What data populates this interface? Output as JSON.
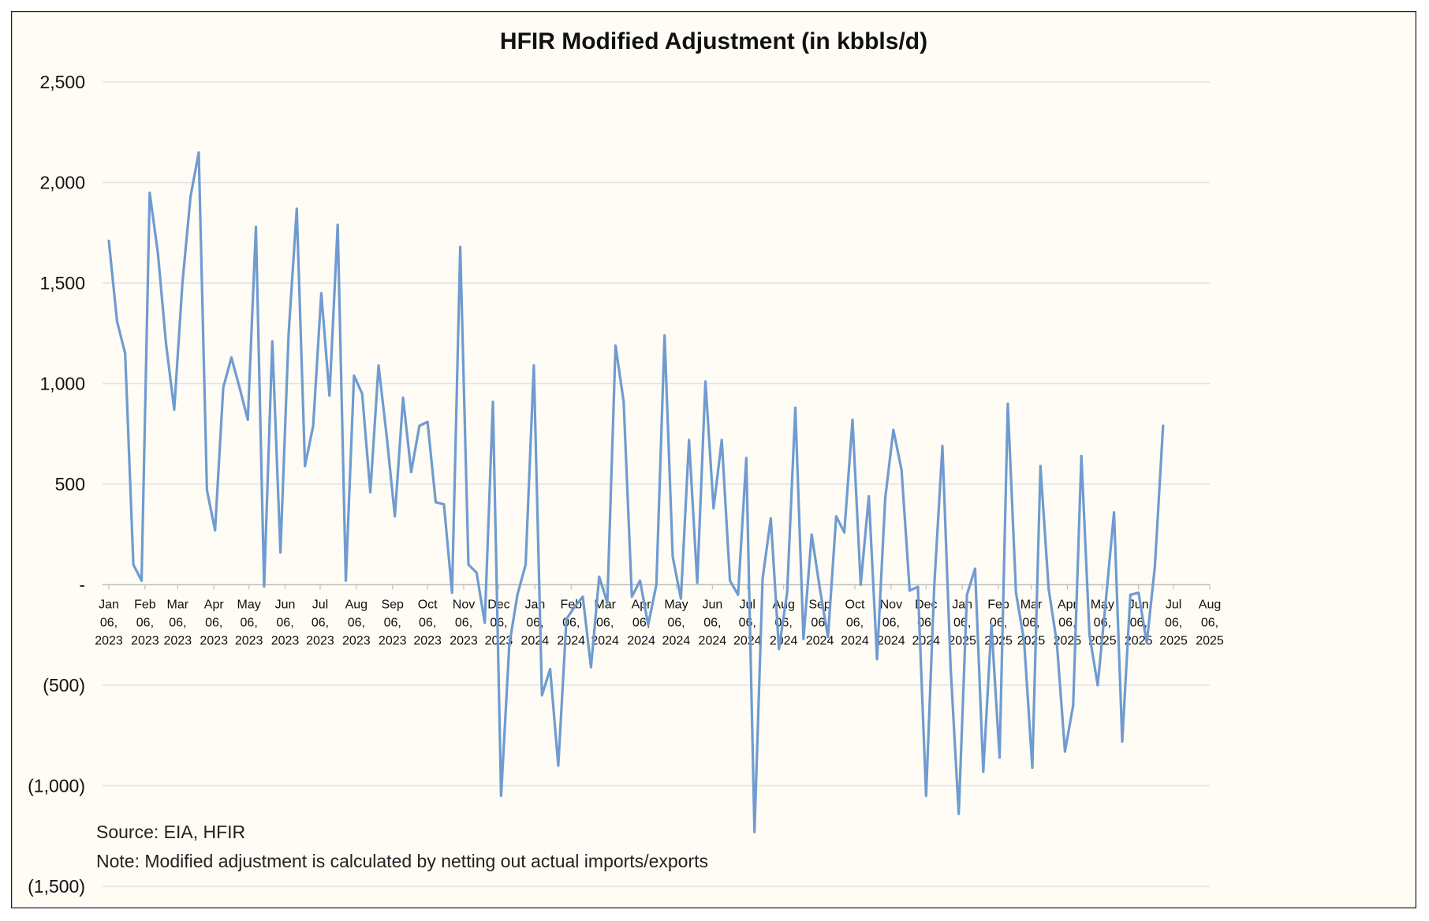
{
  "chart_data": {
    "type": "line",
    "title": "HFIR Modified Adjustment (in kbbls/d)",
    "xlabel": "",
    "ylabel": "",
    "ylim": [
      -1500,
      2500
    ],
    "y_ticks": [
      2500,
      2000,
      1500,
      1000,
      500,
      0,
      -500,
      -1000,
      -1500
    ],
    "y_tick_labels": [
      "2,500",
      "2,000",
      "1,500",
      "1,000",
      "500",
      "-",
      "(500)",
      "(1,000)",
      "(1,500)"
    ],
    "x_ticks": [
      {
        "month": "Jan",
        "day": "06,",
        "year": "2023"
      },
      {
        "month": "Feb",
        "day": "06,",
        "year": "2023"
      },
      {
        "month": "Mar",
        "day": "06,",
        "year": "2023"
      },
      {
        "month": "Apr",
        "day": "06,",
        "year": "2023"
      },
      {
        "month": "May",
        "day": "06,",
        "year": "2023"
      },
      {
        "month": "Jun",
        "day": "06,",
        "year": "2023"
      },
      {
        "month": "Jul",
        "day": "06,",
        "year": "2023"
      },
      {
        "month": "Aug",
        "day": "06,",
        "year": "2023"
      },
      {
        "month": "Sep",
        "day": "06,",
        "year": "2023"
      },
      {
        "month": "Oct",
        "day": "06,",
        "year": "2023"
      },
      {
        "month": "Nov",
        "day": "06,",
        "year": "2023"
      },
      {
        "month": "Dec",
        "day": "06,",
        "year": "2023"
      },
      {
        "month": "Jan",
        "day": "06,",
        "year": "2024"
      },
      {
        "month": "Feb",
        "day": "06,",
        "year": "2024"
      },
      {
        "month": "Mar",
        "day": "06,",
        "year": "2024"
      },
      {
        "month": "Apr",
        "day": "06,",
        "year": "2024"
      },
      {
        "month": "May",
        "day": "06,",
        "year": "2024"
      },
      {
        "month": "Jun",
        "day": "06,",
        "year": "2024"
      },
      {
        "month": "Jul",
        "day": "06,",
        "year": "2024"
      },
      {
        "month": "Aug",
        "day": "06,",
        "year": "2024"
      },
      {
        "month": "Sep",
        "day": "06,",
        "year": "2024"
      },
      {
        "month": "Oct",
        "day": "06,",
        "year": "2024"
      },
      {
        "month": "Nov",
        "day": "06,",
        "year": "2024"
      },
      {
        "month": "Dec",
        "day": "06,",
        "year": "2024"
      },
      {
        "month": "Jan",
        "day": "06,",
        "year": "2025"
      },
      {
        "month": "Feb",
        "day": "06,",
        "year": "2025"
      },
      {
        "month": "Mar",
        "day": "06,",
        "year": "2025"
      },
      {
        "month": "Apr",
        "day": "06,",
        "year": "2025"
      },
      {
        "month": "May",
        "day": "06,",
        "year": "2025"
      },
      {
        "month": "Jun",
        "day": "06,",
        "year": "2025"
      },
      {
        "month": "Jul",
        "day": "06,",
        "year": "2025"
      },
      {
        "month": "Aug",
        "day": "06,",
        "year": "2025"
      }
    ],
    "series": [
      {
        "color": "#6f9bd1",
        "points": [
          [
            "2023-01-06",
            1710
          ],
          [
            "2023-01-13",
            1310
          ],
          [
            "2023-01-20",
            1150
          ],
          [
            "2023-01-27",
            100
          ],
          [
            "2023-02-03",
            20
          ],
          [
            "2023-02-10",
            1950
          ],
          [
            "2023-02-17",
            1650
          ],
          [
            "2023-02-24",
            1200
          ],
          [
            "2023-03-03",
            870
          ],
          [
            "2023-03-10",
            1500
          ],
          [
            "2023-03-17",
            1930
          ],
          [
            "2023-03-24",
            2150
          ],
          [
            "2023-03-31",
            470
          ],
          [
            "2023-04-07",
            270
          ],
          [
            "2023-04-14",
            980
          ],
          [
            "2023-04-21",
            1130
          ],
          [
            "2023-04-28",
            980
          ],
          [
            "2023-05-05",
            820
          ],
          [
            "2023-05-12",
            1780
          ],
          [
            "2023-05-19",
            -10
          ],
          [
            "2023-05-26",
            1210
          ],
          [
            "2023-06-02",
            160
          ],
          [
            "2023-06-09",
            1250
          ],
          [
            "2023-06-16",
            1870
          ],
          [
            "2023-06-23",
            590
          ],
          [
            "2023-06-30",
            790
          ],
          [
            "2023-07-07",
            1450
          ],
          [
            "2023-07-14",
            940
          ],
          [
            "2023-07-21",
            1790
          ],
          [
            "2023-07-28",
            20
          ],
          [
            "2023-08-04",
            1040
          ],
          [
            "2023-08-11",
            950
          ],
          [
            "2023-08-18",
            460
          ],
          [
            "2023-08-25",
            1090
          ],
          [
            "2023-09-01",
            740
          ],
          [
            "2023-09-08",
            340
          ],
          [
            "2023-09-15",
            930
          ],
          [
            "2023-09-22",
            560
          ],
          [
            "2023-09-29",
            790
          ],
          [
            "2023-10-06",
            810
          ],
          [
            "2023-10-13",
            410
          ],
          [
            "2023-10-20",
            400
          ],
          [
            "2023-10-27",
            -40
          ],
          [
            "2023-11-03",
            1680
          ],
          [
            "2023-11-10",
            100
          ],
          [
            "2023-11-17",
            60
          ],
          [
            "2023-11-24",
            -190
          ],
          [
            "2023-12-01",
            910
          ],
          [
            "2023-12-08",
            -1050
          ],
          [
            "2023-12-15",
            -300
          ],
          [
            "2023-12-22",
            -50
          ],
          [
            "2023-12-29",
            100
          ],
          [
            "2024-01-05",
            1090
          ],
          [
            "2024-01-12",
            -550
          ],
          [
            "2024-01-19",
            -420
          ],
          [
            "2024-01-26",
            -900
          ],
          [
            "2024-02-02",
            -170
          ],
          [
            "2024-02-09",
            -110
          ],
          [
            "2024-02-16",
            -60
          ],
          [
            "2024-02-23",
            -410
          ],
          [
            "2024-03-01",
            40
          ],
          [
            "2024-03-08",
            -90
          ],
          [
            "2024-03-15",
            1190
          ],
          [
            "2024-03-22",
            910
          ],
          [
            "2024-03-29",
            -60
          ],
          [
            "2024-04-05",
            20
          ],
          [
            "2024-04-12",
            -200
          ],
          [
            "2024-04-19",
            0
          ],
          [
            "2024-04-26",
            1240
          ],
          [
            "2024-05-03",
            140
          ],
          [
            "2024-05-10",
            -70
          ],
          [
            "2024-05-17",
            720
          ],
          [
            "2024-05-24",
            10
          ],
          [
            "2024-05-31",
            1010
          ],
          [
            "2024-06-07",
            380
          ],
          [
            "2024-06-14",
            720
          ],
          [
            "2024-06-21",
            20
          ],
          [
            "2024-06-28",
            -50
          ],
          [
            "2024-07-05",
            630
          ],
          [
            "2024-07-12",
            -1230
          ],
          [
            "2024-07-19",
            30
          ],
          [
            "2024-07-26",
            330
          ],
          [
            "2024-08-02",
            -320
          ],
          [
            "2024-08-09",
            -40
          ],
          [
            "2024-08-16",
            880
          ],
          [
            "2024-08-23",
            -270
          ],
          [
            "2024-08-30",
            250
          ],
          [
            "2024-09-06",
            -20
          ],
          [
            "2024-09-13",
            -260
          ],
          [
            "2024-09-20",
            340
          ],
          [
            "2024-09-27",
            260
          ],
          [
            "2024-10-04",
            820
          ],
          [
            "2024-10-11",
            0
          ],
          [
            "2024-10-18",
            440
          ],
          [
            "2024-10-25",
            -370
          ],
          [
            "2024-11-01",
            430
          ],
          [
            "2024-11-08",
            770
          ],
          [
            "2024-11-15",
            570
          ],
          [
            "2024-11-22",
            -30
          ],
          [
            "2024-11-29",
            -10
          ],
          [
            "2024-12-06",
            -1050
          ],
          [
            "2024-12-13",
            -10
          ],
          [
            "2024-12-20",
            690
          ],
          [
            "2024-12-27",
            -410
          ],
          [
            "2025-01-03",
            -1140
          ],
          [
            "2025-01-10",
            -50
          ],
          [
            "2025-01-17",
            80
          ],
          [
            "2025-01-24",
            -930
          ],
          [
            "2025-01-31",
            -200
          ],
          [
            "2025-02-07",
            -860
          ],
          [
            "2025-02-14",
            900
          ],
          [
            "2025-02-21",
            -40
          ],
          [
            "2025-02-28",
            -280
          ],
          [
            "2025-03-07",
            -910
          ],
          [
            "2025-03-14",
            590
          ],
          [
            "2025-03-21",
            -20
          ],
          [
            "2025-03-28",
            -290
          ],
          [
            "2025-04-04",
            -830
          ],
          [
            "2025-04-11",
            -600
          ],
          [
            "2025-04-18",
            640
          ],
          [
            "2025-04-25",
            -250
          ],
          [
            "2025-05-02",
            -500
          ],
          [
            "2025-05-09",
            -80
          ],
          [
            "2025-05-16",
            360
          ],
          [
            "2025-05-23",
            -780
          ],
          [
            "2025-05-30",
            -50
          ],
          [
            "2025-06-06",
            -40
          ],
          [
            "2025-06-13",
            -290
          ],
          [
            "2025-06-20",
            90
          ],
          [
            "2025-06-27",
            790
          ]
        ]
      }
    ],
    "grid": true,
    "legend": "none"
  },
  "notes": {
    "source": "Source: EIA, HFIR",
    "note": "Note: Modified adjustment is calculated by netting out actual imports/exports"
  },
  "colors": {
    "background": "#fefcf4",
    "gridline": "#dfe3e8",
    "axis": "#bfbfbf",
    "border": "#222222",
    "text": "#111111"
  }
}
